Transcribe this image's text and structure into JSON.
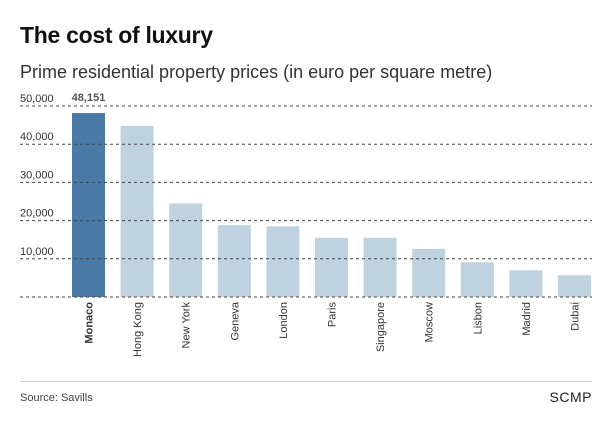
{
  "header": {
    "title": "The cost of luxury",
    "subtitle": "Prime residential property prices (in euro per square metre)"
  },
  "footer": {
    "source": "Source: Savills",
    "brand": "SCMP"
  },
  "colors": {
    "highlight": "#4a7ba7",
    "bar": "#bfd2df",
    "grid": "#444444",
    "tick_text": "#333333"
  },
  "chart_data": {
    "type": "bar",
    "title": "The cost of luxury",
    "subtitle": "Prime residential property prices (in euro per square metre)",
    "categories": [
      "Monaco",
      "Hong Kong",
      "New York",
      "Geneva",
      "London",
      "Paris",
      "Singapore",
      "Moscow",
      "Lisbon",
      "Madrid",
      "Dubai"
    ],
    "values": [
      48151,
      44800,
      24500,
      18800,
      18500,
      15500,
      15500,
      12600,
      9100,
      7000,
      5700
    ],
    "highlight_index": 0,
    "highlight_label": "48,151",
    "yticks": [
      10000,
      20000,
      30000,
      40000,
      50000
    ],
    "ytick_labels": [
      "10,000",
      "20,000",
      "30,000",
      "40,000",
      "50,000"
    ],
    "ylim": [
      0,
      50000
    ],
    "grid": true,
    "grid_style": "dashed"
  }
}
